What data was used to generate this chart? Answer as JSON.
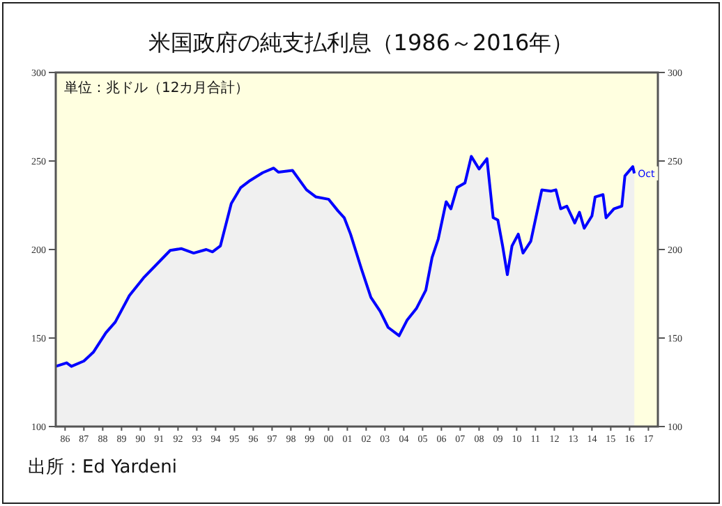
{
  "chart_data": {
    "type": "area",
    "title": "米国政府の純支払利息（1986～2016年）",
    "annotations": [
      "単位：兆ドル（12カ月合計）",
      "出所：Ed Yardeni",
      {
        "text": "Oct",
        "x": "2016-10",
        "y": 243
      }
    ],
    "x": [
      "1986-01",
      "1986-08",
      "1986-11",
      "1987-07",
      "1988-01",
      "1988-09",
      "1989-03",
      "1989-12",
      "1990-09",
      "1991-08",
      "1992-02",
      "1992-09",
      "1993-05",
      "1994-01",
      "1994-05",
      "1994-10",
      "1995-05",
      "1995-11",
      "1996-05",
      "1997-01",
      "1997-08",
      "1997-11",
      "1998-08",
      "1999-05",
      "1999-11",
      "2000-07",
      "2001-01",
      "2001-05",
      "2001-09",
      "2002-04",
      "2002-10",
      "2003-04",
      "2003-09",
      "2004-04",
      "2004-09",
      "2005-03",
      "2005-09",
      "2006-01",
      "2006-05",
      "2006-10",
      "2007-01",
      "2007-05",
      "2007-10",
      "2008-02",
      "2008-07",
      "2008-12",
      "2009-04",
      "2009-07",
      "2009-10",
      "2010-01",
      "2010-04",
      "2010-08",
      "2010-11",
      "2011-04",
      "2011-11",
      "2012-05",
      "2012-08",
      "2012-11",
      "2013-03",
      "2013-08",
      "2013-11",
      "2014-02",
      "2014-07",
      "2014-09",
      "2015-02",
      "2015-04",
      "2015-09",
      "2016-02",
      "2016-04",
      "2016-09",
      "2016-10"
    ],
    "series": [
      {
        "color": "#0000ff",
        "values": [
          134,
          136,
          134,
          137,
          142,
          153,
          159,
          174,
          184,
          194,
          199.5,
          200.5,
          198,
          200,
          198.7,
          202,
          226,
          235,
          239,
          243.4,
          246,
          243.7,
          244.7,
          233.7,
          229.7,
          228.4,
          221.8,
          218,
          208.7,
          189,
          173,
          165,
          156,
          151.3,
          160,
          166.6,
          177,
          195.5,
          206,
          227,
          223,
          235,
          237.6,
          252.6,
          245.5,
          251.3,
          218,
          216.6,
          202,
          185.8,
          202,
          208.7,
          198,
          204.7,
          233.7,
          233,
          233.7,
          223,
          224.5,
          215,
          221,
          212,
          219,
          229.7,
          231,
          217.9,
          223,
          224.5,
          241.6,
          246.8,
          243
        ]
      }
    ],
    "xlim": [
      "1986-01",
      "2018-01"
    ],
    "xticks": [
      {
        "value": "1986-07",
        "label": "86"
      },
      {
        "value": "1987-07",
        "label": "87"
      },
      {
        "value": "1988-07",
        "label": "88"
      },
      {
        "value": "1989-07",
        "label": "89"
      },
      {
        "value": "1990-07",
        "label": "90"
      },
      {
        "value": "1991-07",
        "label": "91"
      },
      {
        "value": "1992-07",
        "label": "92"
      },
      {
        "value": "1993-07",
        "label": "93"
      },
      {
        "value": "1994-07",
        "label": "94"
      },
      {
        "value": "1995-07",
        "label": "95"
      },
      {
        "value": "1996-07",
        "label": "96"
      },
      {
        "value": "1997-07",
        "label": "97"
      },
      {
        "value": "1998-07",
        "label": "98"
      },
      {
        "value": "1999-07",
        "label": "99"
      },
      {
        "value": "2000-07",
        "label": "00"
      },
      {
        "value": "2001-07",
        "label": "01"
      },
      {
        "value": "2002-07",
        "label": "02"
      },
      {
        "value": "2003-07",
        "label": "03"
      },
      {
        "value": "2004-07",
        "label": "04"
      },
      {
        "value": "2005-07",
        "label": "05"
      },
      {
        "value": "2006-07",
        "label": "06"
      },
      {
        "value": "2007-07",
        "label": "07"
      },
      {
        "value": "2008-07",
        "label": "08"
      },
      {
        "value": "2009-07",
        "label": "09"
      },
      {
        "value": "2010-07",
        "label": "10"
      },
      {
        "value": "2011-07",
        "label": "11"
      },
      {
        "value": "2012-07",
        "label": "12"
      },
      {
        "value": "2013-07",
        "label": "13"
      },
      {
        "value": "2014-07",
        "label": "14"
      },
      {
        "value": "2015-07",
        "label": "15"
      },
      {
        "value": "2016-07",
        "label": "16"
      },
      {
        "value": "2017-07",
        "label": "17"
      }
    ],
    "ylim": [
      100,
      300
    ],
    "yticks": [
      100,
      150,
      200,
      250,
      300
    ],
    "y2lim": [
      100,
      300
    ],
    "y2ticks": [
      100,
      150,
      200,
      250,
      300
    ],
    "grid": false
  }
}
